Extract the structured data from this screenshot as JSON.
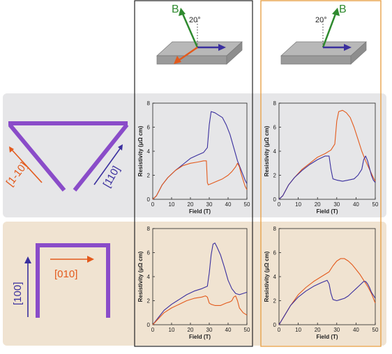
{
  "colors": {
    "blue": "#3a2f9e",
    "orange": "#e35a1c",
    "green": "#2f8a2f",
    "purple": "#8a4cc9",
    "row1_bg": "#e6e6e8",
    "row2_bg": "#f0e3d1",
    "black_frame": "#222222",
    "orange_frame": "#e8a24a",
    "slab_top": "#b8b8b8",
    "slab_side": "#8d8d8d"
  },
  "field_labels": {
    "B": "B",
    "angle": "20°"
  },
  "geometry_labels": {
    "row1_orange": "[1-10]",
    "row1_blue": "[110]",
    "row2_blue": "[100]",
    "row2_orange": "[010]"
  },
  "chart_data": [
    {
      "type": "line",
      "xlabel": "Field (T)",
      "ylabel": "Resistivity (μΩ cm)",
      "xlim": [
        0,
        50
      ],
      "ylim": [
        0,
        8
      ],
      "xticks": [
        "0",
        "10",
        "20",
        "30",
        "40",
        "50"
      ],
      "yticks": [
        "0",
        "2",
        "4",
        "6",
        "8"
      ],
      "series": [
        {
          "color": "blue",
          "x": [
            0,
            2,
            5,
            8,
            12,
            16,
            20,
            24,
            27,
            29,
            30,
            31,
            33,
            35,
            37,
            39,
            41,
            43,
            45,
            47,
            49,
            50
          ],
          "y": [
            0,
            0.3,
            1.2,
            1.8,
            2.4,
            2.9,
            3.4,
            3.7,
            3.9,
            4.3,
            6.2,
            7.3,
            7.2,
            7.0,
            6.8,
            6.2,
            5.4,
            4.3,
            3.2,
            2.4,
            1.6,
            1.3
          ]
        },
        {
          "color": "orange",
          "x": [
            0,
            2,
            5,
            8,
            12,
            16,
            20,
            24,
            27,
            28.5,
            29,
            29.5,
            31,
            34,
            37,
            40,
            42,
            44,
            45,
            46,
            47,
            48,
            49,
            50
          ],
          "y": [
            0,
            0.3,
            1.2,
            1.8,
            2.4,
            2.8,
            3.0,
            3.1,
            3.2,
            3.2,
            1.4,
            1.2,
            1.3,
            1.5,
            1.7,
            2.0,
            2.3,
            2.7,
            3.0,
            2.7,
            2.1,
            1.6,
            1.1,
            0.8
          ]
        }
      ]
    },
    {
      "type": "line",
      "xlabel": "Field (T)",
      "ylabel": "Resistivity (μΩ cm)",
      "xlim": [
        0,
        50
      ],
      "ylim": [
        0,
        8
      ],
      "xticks": [
        "0",
        "10",
        "20",
        "30",
        "40",
        "50"
      ],
      "yticks": [
        "0",
        "2",
        "4",
        "6",
        "8"
      ],
      "series": [
        {
          "color": "orange",
          "x": [
            0,
            2,
            5,
            8,
            12,
            16,
            20,
            24,
            27,
            29,
            30,
            31,
            33,
            35,
            37,
            39,
            41,
            43,
            45,
            47,
            49,
            50
          ],
          "y": [
            0,
            0.3,
            1.2,
            1.8,
            2.5,
            3.0,
            3.5,
            3.8,
            4.1,
            4.6,
            6.5,
            7.3,
            7.4,
            7.2,
            6.8,
            6.0,
            5.0,
            4.0,
            3.2,
            2.5,
            1.8,
            1.5
          ]
        },
        {
          "color": "blue",
          "x": [
            0,
            2,
            5,
            8,
            12,
            16,
            20,
            24,
            26,
            27,
            28,
            30,
            33,
            36,
            39,
            41,
            43,
            44,
            45,
            46,
            47,
            48,
            49,
            50
          ],
          "y": [
            0,
            0.3,
            1.2,
            1.8,
            2.4,
            2.9,
            3.3,
            3.6,
            3.6,
            2.5,
            1.7,
            1.6,
            1.5,
            1.6,
            1.7,
            2.0,
            2.5,
            3.3,
            3.6,
            3.2,
            2.6,
            2.0,
            1.6,
            1.4
          ]
        }
      ]
    },
    {
      "type": "line",
      "xlabel": "Field (T)",
      "ylabel": "Resistivity (μΩ cm)",
      "xlim": [
        0,
        50
      ],
      "ylim": [
        0,
        8
      ],
      "xticks": [
        "0",
        "10",
        "20",
        "30",
        "40",
        "50"
      ],
      "yticks": [
        "0",
        "2",
        "4",
        "6",
        "8"
      ],
      "series": [
        {
          "color": "blue",
          "x": [
            0,
            3,
            6,
            10,
            14,
            18,
            22,
            26,
            29,
            30,
            31,
            32,
            33,
            34,
            36,
            38,
            40,
            42,
            44,
            46,
            48,
            50
          ],
          "y": [
            0,
            0.6,
            1.2,
            1.7,
            2.1,
            2.5,
            2.8,
            3.0,
            3.2,
            4.3,
            5.8,
            6.7,
            6.8,
            6.5,
            5.8,
            4.8,
            3.7,
            3.0,
            2.6,
            2.5,
            2.6,
            2.7
          ]
        },
        {
          "color": "orange",
          "x": [
            0,
            3,
            6,
            10,
            14,
            18,
            22,
            26,
            28,
            29,
            30,
            31,
            33,
            36,
            39,
            41,
            42,
            43,
            44,
            45,
            46,
            48,
            50
          ],
          "y": [
            0,
            0.5,
            1.0,
            1.4,
            1.7,
            2.0,
            2.2,
            2.3,
            2.4,
            2.3,
            1.8,
            1.7,
            1.6,
            1.6,
            1.8,
            1.9,
            2.0,
            2.3,
            2.4,
            2.0,
            1.4,
            1.0,
            0.8
          ]
        }
      ]
    },
    {
      "type": "line",
      "xlabel": "Field (T)",
      "ylabel": "Resistivity (μΩ cm)",
      "xlim": [
        0,
        50
      ],
      "ylim": [
        0,
        8
      ],
      "xticks": [
        "0",
        "10",
        "20",
        "30",
        "40",
        "50"
      ],
      "yticks": [
        "0",
        "2",
        "4",
        "6",
        "8"
      ],
      "series": [
        {
          "color": "orange",
          "x": [
            0,
            3,
            6,
            10,
            14,
            18,
            22,
            26,
            28,
            30,
            32,
            34,
            36,
            38,
            40,
            42,
            44,
            46,
            48,
            50
          ],
          "y": [
            0,
            0.8,
            1.6,
            2.5,
            3.1,
            3.6,
            4.0,
            4.4,
            4.9,
            5.3,
            5.5,
            5.5,
            5.3,
            5.0,
            4.6,
            4.2,
            3.7,
            3.2,
            2.6,
            1.8
          ]
        },
        {
          "color": "blue",
          "x": [
            0,
            3,
            6,
            10,
            14,
            18,
            22,
            25,
            26,
            27,
            28,
            30,
            32,
            34,
            36,
            38,
            40,
            42,
            44,
            45,
            46,
            47,
            48,
            50
          ],
          "y": [
            0,
            0.8,
            1.6,
            2.3,
            2.8,
            3.2,
            3.5,
            3.7,
            3.4,
            2.6,
            2.1,
            2.0,
            2.1,
            2.2,
            2.4,
            2.7,
            3.0,
            3.3,
            3.6,
            3.6,
            3.4,
            3.1,
            2.7,
            2.2
          ]
        }
      ]
    }
  ]
}
